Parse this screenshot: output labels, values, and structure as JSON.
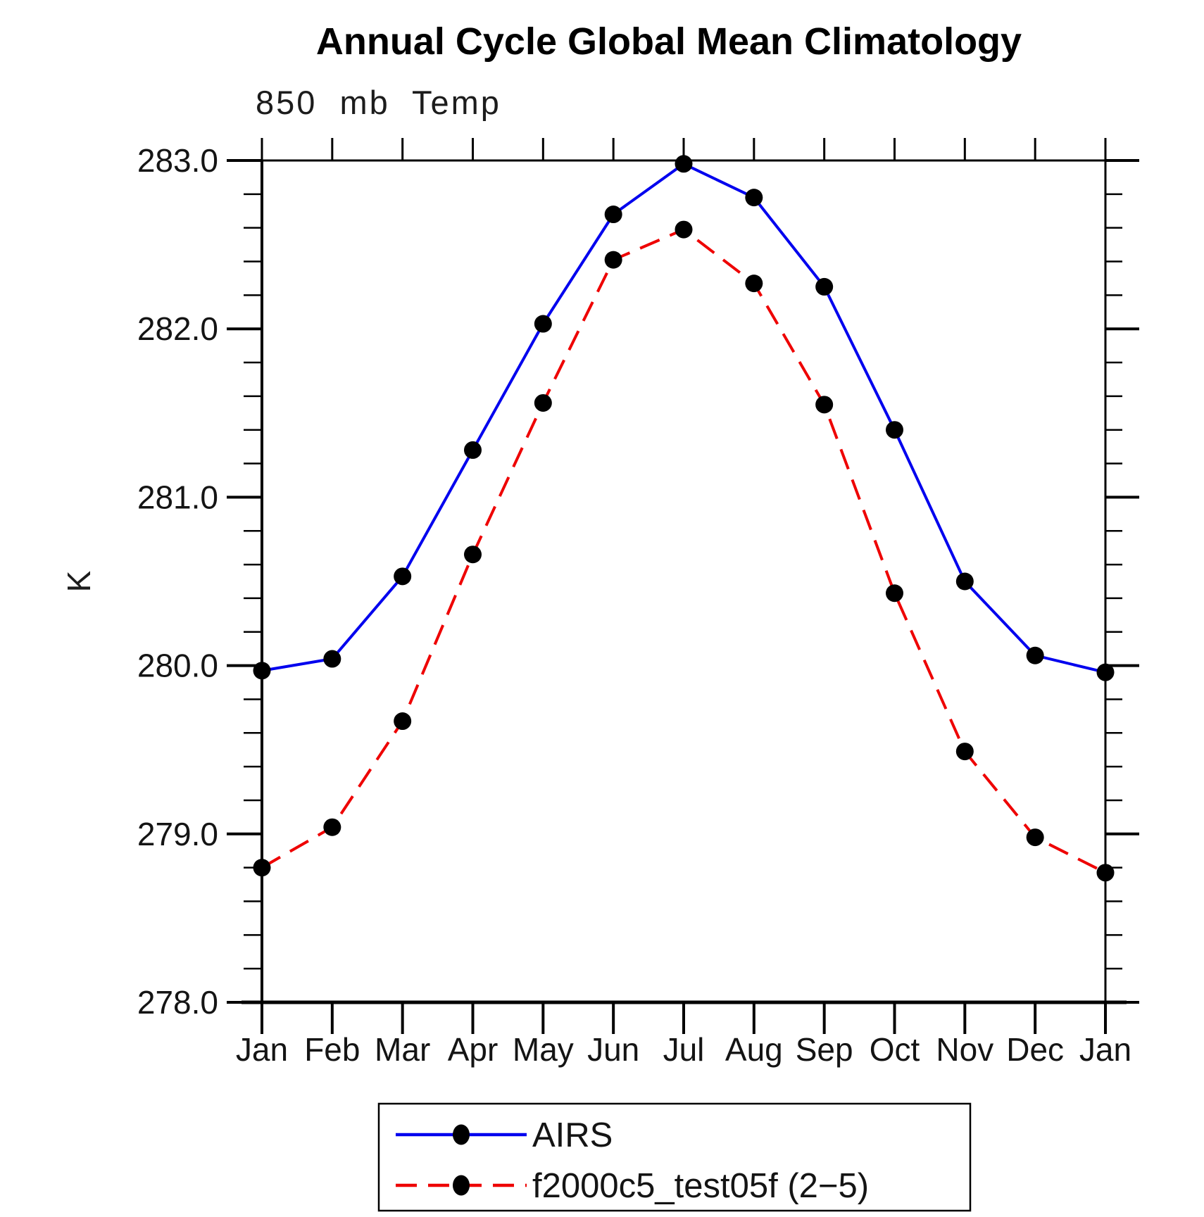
{
  "title": "Annual Cycle Global Mean Climatology",
  "subtitle": "850 mb Temp",
  "chart_data": {
    "type": "line",
    "title": "Annual Cycle Global Mean Climatology",
    "subtitle": "850 mb Temp",
    "xlabel": "",
    "ylabel": "K",
    "categories": [
      "Jan",
      "Feb",
      "Mar",
      "Apr",
      "May",
      "Jun",
      "Jul",
      "Aug",
      "Sep",
      "Oct",
      "Nov",
      "Dec",
      "Jan"
    ],
    "series": [
      {
        "name": "AIRS",
        "color": "#0000ee",
        "line_style": "solid",
        "marker": "black-circle",
        "values": [
          279.97,
          280.04,
          280.53,
          281.28,
          282.03,
          282.68,
          282.98,
          282.78,
          282.25,
          281.4,
          280.5,
          280.06,
          279.96
        ]
      },
      {
        "name": "f2000c5_test05f (2−5)",
        "color": "#ee0000",
        "line_style": "dashed",
        "marker": "black-circle",
        "values": [
          278.8,
          279.04,
          279.67,
          280.66,
          281.56,
          282.41,
          282.59,
          282.27,
          281.55,
          280.43,
          279.49,
          278.98,
          278.77
        ]
      }
    ],
    "ylim": [
      278.0,
      283.0
    ],
    "ytick_major_step": 1.0,
    "ytick_minor_step": 0.2,
    "ytick_labels": [
      "283.0",
      "282.0",
      "281.0",
      "280.0",
      "279.0",
      "278.0"
    ],
    "ytick_values": [
      283.0,
      282.0,
      281.0,
      280.0,
      279.0,
      278.0
    ],
    "grid": false,
    "legend_position": "bottom",
    "marker_color": "#000000",
    "axis_color": "#000000"
  },
  "legend": {
    "entries": [
      {
        "label": "AIRS"
      },
      {
        "label": "f2000c5_test05f (2−5)"
      }
    ]
  }
}
